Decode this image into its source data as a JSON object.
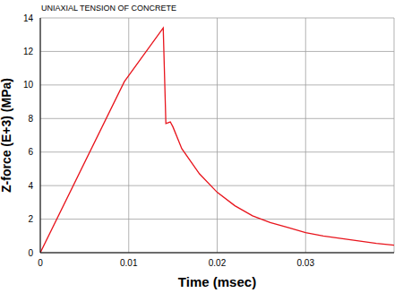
{
  "chart_data": {
    "type": "line",
    "title": "UNIAXIAL TENSION OF CONCRETE",
    "x_label": "Time (msec)",
    "y_label": "Z-force (E+3) (MPa)",
    "x": [
      0,
      0.0095,
      0.0139,
      0.0142,
      0.0147,
      0.015,
      0.016,
      0.018,
      0.02,
      0.022,
      0.024,
      0.026,
      0.028,
      0.03,
      0.032,
      0.034,
      0.036,
      0.038,
      0.04
    ],
    "series": [
      {
        "name": "Z-force",
        "color": "#e8141c",
        "values": [
          0,
          10.2,
          13.4,
          7.7,
          7.8,
          7.5,
          6.2,
          4.7,
          3.6,
          2.8,
          2.2,
          1.8,
          1.5,
          1.2,
          1.0,
          0.85,
          0.7,
          0.55,
          0.45
        ]
      }
    ],
    "xlim": [
      0,
      0.04
    ],
    "xticks": [
      0,
      0.01,
      0.02,
      0.03
    ],
    "ylim": [
      0,
      14
    ],
    "yticks": [
      0,
      2,
      4,
      6,
      8,
      10,
      12,
      14
    ],
    "grid": true
  }
}
